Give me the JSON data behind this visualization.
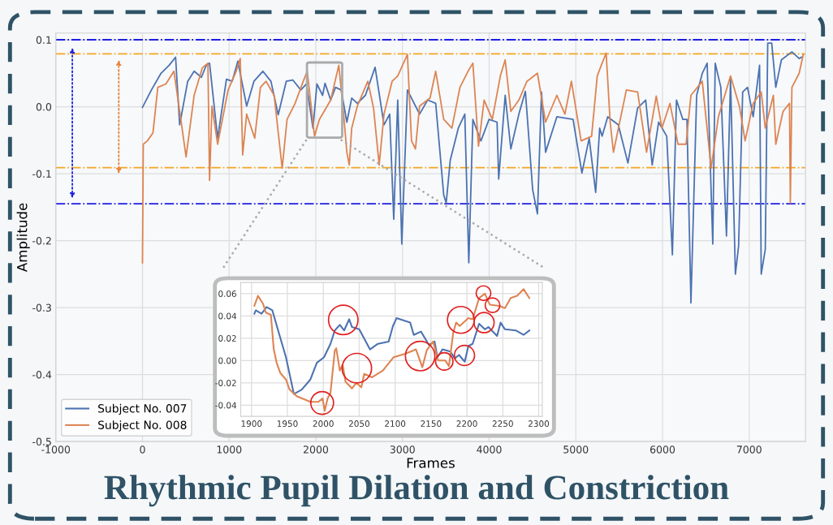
{
  "chart_data": [
    {
      "type": "line",
      "title": "Rhythmic Pupil Dilation and Constriction",
      "xlabel": "Frames",
      "ylabel": "Amplitude",
      "xlim": [
        -1000,
        7650
      ],
      "ylim": [
        -0.5,
        0.11
      ],
      "xticks": [
        -1000,
        0,
        1000,
        2000,
        3000,
        4000,
        5000,
        6000,
        7000
      ],
      "yticks": [
        -0.5,
        -0.4,
        -0.3,
        -0.2,
        -0.1,
        {
          "value": 0,
          "label": "0.0"
        },
        0.1
      ],
      "grid": true,
      "legend": "bottom left",
      "line_style": "solid",
      "ref_lines": [
        {
          "axis": "y",
          "value": 0.1,
          "color": "#1f1fe0",
          "line_style": "dashdot"
        },
        {
          "axis": "y",
          "value": -0.145,
          "color": "#1f1fe0",
          "line_style": "dashdot"
        },
        {
          "axis": "y",
          "value": 0.079,
          "color": "#f5a623",
          "line_style": "dashdot"
        },
        {
          "axis": "y",
          "value": -0.091,
          "color": "#f5a623",
          "line_style": "dashdot"
        }
      ],
      "series": [
        {
          "name": "Subject No. 007",
          "color": "#4c72b0",
          "x": [
            0,
            103,
            214,
            308,
            382,
            429,
            522,
            596,
            680,
            736,
            774,
            867,
            969,
            1035,
            1100,
            1202,
            1286,
            1389,
            1482,
            1566,
            1659,
            1734,
            1827,
            1892,
            1967,
            2013,
            2078,
            2106,
            2172,
            2227,
            2293,
            2358,
            2414,
            2479,
            2572,
            2684,
            2787,
            2852,
            2899,
            2945,
            2992,
            3057,
            3197,
            3290,
            3383,
            3476,
            3504,
            3551,
            3644,
            3719,
            3765,
            3812,
            3905,
            3998,
            4091,
            4110,
            4185,
            4250,
            4343,
            4418,
            4502,
            4557,
            4604,
            4651,
            4781,
            4968,
            5070,
            5154,
            5229,
            5275,
            5303,
            5368,
            5490,
            5601,
            5713,
            5806,
            5881,
            5955,
            6049,
            6114,
            6161,
            6235,
            6282,
            6328,
            6394,
            6459,
            6515,
            6580,
            6608,
            6673,
            6738,
            6785,
            6841,
            6878,
            6925,
            6981,
            7046,
            7120,
            7139,
            7186,
            7214,
            7260,
            7307,
            7372,
            7493,
            7577,
            7605
          ],
          "values": [
            -0.001,
            0.025,
            0.05,
            0.062,
            0.074,
            -0.027,
            0.038,
            0.053,
            0.044,
            0.062,
            0.065,
            -0.047,
            0.041,
            0.038,
            0.068,
            0.001,
            0.038,
            0.053,
            0.038,
            -0.012,
            0.038,
            0.04,
            0.025,
            0.034,
            -0.032,
            0.034,
            0.017,
            0.035,
            0.01,
            0.029,
            0.025,
            -0.023,
            0.013,
            0.005,
            0.017,
            0.059,
            -0.027,
            -0.011,
            -0.168,
            0.01,
            -0.205,
            0.025,
            -0.011,
            0.01,
            0.005,
            -0.132,
            -0.144,
            -0.08,
            -0.032,
            -0.011,
            -0.233,
            -0.019,
            -0.051,
            -0.019,
            -0.023,
            -0.108,
            0.017,
            -0.063,
            -0.011,
            0.023,
            -0.124,
            -0.16,
            0.022,
            -0.068,
            -0.015,
            -0.019,
            -0.099,
            -0.047,
            -0.128,
            -0.032,
            -0.044,
            -0.015,
            -0.027,
            -0.084,
            -0.002,
            0.01,
            -0.087,
            -0.023,
            -0.044,
            -0.221,
            0.01,
            -0.019,
            -0.019,
            -0.293,
            0.017,
            0.05,
            0.065,
            -0.205,
            0.065,
            0.029,
            -0.193,
            0.041,
            -0.25,
            -0.208,
            0.022,
            0.029,
            -0.015,
            0.062,
            -0.25,
            -0.213,
            0.095,
            0.095,
            0.029,
            0.07,
            0.082,
            0.072,
            0.074
          ]
        },
        {
          "name": "Subject No. 008",
          "color": "#dd8452",
          "x": [
            0,
            9,
            56,
            121,
            177,
            270,
            363,
            447,
            503,
            596,
            690,
            755,
            774,
            802,
            867,
            988,
            1081,
            1128,
            1156,
            1202,
            1295,
            1361,
            1426,
            1519,
            1612,
            1668,
            1761,
            1855,
            1901,
            1985,
            2041,
            2172,
            2265,
            2321,
            2358,
            2386,
            2414,
            2479,
            2600,
            2666,
            2731,
            2787,
            2880,
            2945,
            3057,
            3104,
            3150,
            3197,
            3318,
            3383,
            3476,
            3570,
            3663,
            3756,
            3812,
            3877,
            3942,
            4036,
            4129,
            4185,
            4250,
            4343,
            4436,
            4557,
            4651,
            4781,
            4874,
            4949,
            5061,
            5182,
            5247,
            5303,
            5350,
            5396,
            5434,
            5583,
            5713,
            5816,
            5928,
            5993,
            6086,
            6179,
            6272,
            6328,
            6459,
            6561,
            6645,
            6785,
            6887,
            6953,
            7046,
            7139,
            7186,
            7279,
            7307,
            7391,
            7465,
            7475,
            7493,
            7577,
            7624
          ],
          "values": [
            -0.233,
            -0.056,
            -0.051,
            -0.039,
            0.029,
            0.034,
            0.053,
            -0.023,
            -0.075,
            0.017,
            0.058,
            0.065,
            -0.11,
            0.001,
            -0.056,
            0.025,
            0.053,
            0.072,
            -0.072,
            -0.011,
            -0.047,
            0.029,
            0.038,
            0.017,
            -0.092,
            -0.019,
            0.005,
            0.038,
            0.053,
            -0.044,
            -0.019,
            0.01,
            0.062,
            -0.011,
            -0.068,
            -0.087,
            -0.032,
            0.001,
            0.038,
            -0.002,
            -0.087,
            -0.011,
            0.038,
            0.046,
            0.078,
            -0.051,
            -0.063,
            0.001,
            0.013,
            0.053,
            -0.019,
            -0.032,
            0.029,
            0.053,
            0.065,
            -0.059,
            0.01,
            -0.019,
            0.046,
            0.07,
            -0.007,
            0.01,
            0.038,
            0.05,
            -0.023,
            0.017,
            -0.011,
            0.038,
            -0.051,
            -0.044,
            0.046,
            0.065,
            0.08,
            -0.023,
            -0.068,
            0.025,
            0.022,
            -0.068,
            0.016,
            -0.032,
            0.005,
            -0.056,
            -0.056,
            0.017,
            0.038,
            -0.092,
            -0.015,
            0.046,
            0.001,
            -0.051,
            0.005,
            0.022,
            -0.032,
            0.017,
            -0.056,
            -0.007,
            0.005,
            -0.144,
            0.029,
            0.05,
            0.078
          ]
        }
      ]
    },
    {
      "type": "line",
      "xlim": [
        1885,
        2305
      ],
      "ylim": [
        -0.05,
        0.07
      ],
      "xticks": [
        1900,
        1950,
        2000,
        2050,
        2100,
        2150,
        2200,
        2250,
        2300
      ],
      "yticks": [
        -0.04,
        -0.02,
        {
          "value": 0,
          "label": "0.00"
        },
        0.02,
        0.04,
        0.06
      ],
      "grid": true,
      "line_style": "solid",
      "series": [
        {
          "color": "#4c72b0",
          "x": [
            1904,
            1906,
            1914,
            1921,
            1929,
            1938,
            1948,
            1959,
            1970,
            1982,
            1991,
            2001,
            2010,
            2016,
            2023,
            2029,
            2036,
            2040,
            2050,
            2065,
            2076,
            2091,
            2097,
            2102,
            2121,
            2126,
            2136,
            2147,
            2155,
            2159,
            2166,
            2177,
            2183,
            2189,
            2197,
            2202,
            2208,
            2217,
            2225,
            2230,
            2242,
            2247,
            2253,
            2268,
            2279,
            2287
          ],
          "values": [
            0.042,
            0.045,
            0.042,
            0.048,
            0.045,
            0.025,
            0.003,
            -0.03,
            -0.026,
            -0.017,
            -0.002,
            0.003,
            0.015,
            0.027,
            0.032,
            0.027,
            0.037,
            0.03,
            0.028,
            0.01,
            0.015,
            0.017,
            0.031,
            0.038,
            0.034,
            0.023,
            0.026,
            0.014,
            0.017,
            0.003,
            0.01,
            0.008,
            0.002,
            0.005,
            -0.001,
            0.013,
            0.015,
            0.033,
            0.028,
            0.03,
            0.022,
            0.034,
            0.028,
            0.027,
            0.023,
            0.027
          ]
        },
        {
          "color": "#dd8452",
          "x": [
            1904,
            1909,
            1916,
            1920,
            1927,
            1931,
            1935,
            1940,
            1948,
            1953,
            1963,
            1982,
            1993,
            1999,
            2002,
            2006,
            2010,
            2016,
            2018,
            2023,
            2027,
            2031,
            2040,
            2046,
            2053,
            2057,
            2068,
            2083,
            2098,
            2114,
            2129,
            2138,
            2144,
            2153,
            2160,
            2170,
            2175,
            2181,
            2185,
            2190,
            2202,
            2208,
            2217,
            2225,
            2232,
            2245,
            2253,
            2261,
            2270,
            2279,
            2287
          ],
          "values": [
            0.049,
            0.058,
            0.051,
            0.043,
            0.041,
            0.01,
            -0.002,
            -0.011,
            -0.017,
            -0.026,
            -0.032,
            -0.037,
            -0.037,
            -0.034,
            -0.045,
            -0.034,
            -0.029,
            0.009,
            0.011,
            -0.009,
            -0.004,
            -0.019,
            -0.025,
            -0.02,
            -0.024,
            -0.012,
            -0.015,
            -0.009,
            0.003,
            0.006,
            0.01,
            -0.006,
            0.009,
            0.017,
            0.0,
            0.0,
            -0.005,
            0.025,
            0.034,
            0.031,
            0.038,
            0.037,
            0.056,
            0.06,
            0.05,
            0.049,
            0.047,
            0.056,
            0.058,
            0.064,
            0.056
          ]
        }
      ]
    }
  ]
}
